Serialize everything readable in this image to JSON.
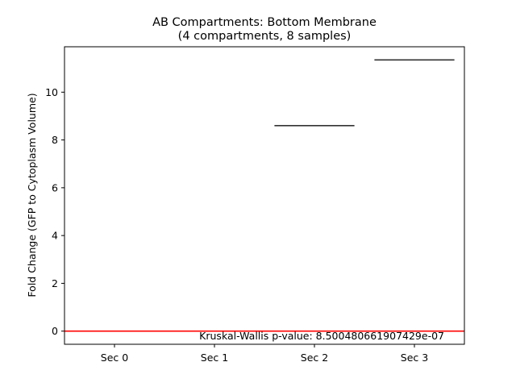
{
  "chart_data": {
    "type": "box",
    "title_line1": "AB Compartments: Bottom Membrane",
    "title_line2": "(4 compartments, 8 samples)",
    "xlabel": "",
    "ylabel": "Fold Change (GFP to Cytoplasm Volume)",
    "categories": [
      "Sec 0",
      "Sec 1",
      "Sec 2",
      "Sec 3"
    ],
    "medians": [
      null,
      null,
      8.6,
      11.35
    ],
    "ylim": [
      -0.55,
      11.9
    ],
    "yticks": [
      0,
      2,
      4,
      6,
      8,
      10
    ],
    "reference_line": {
      "y": 0,
      "color": "#ff0000"
    },
    "annotation": "Kruskal-Wallis p-value: 8.500480661907429e-07",
    "colors": {
      "median": "#333333",
      "axis": "#000000"
    }
  }
}
